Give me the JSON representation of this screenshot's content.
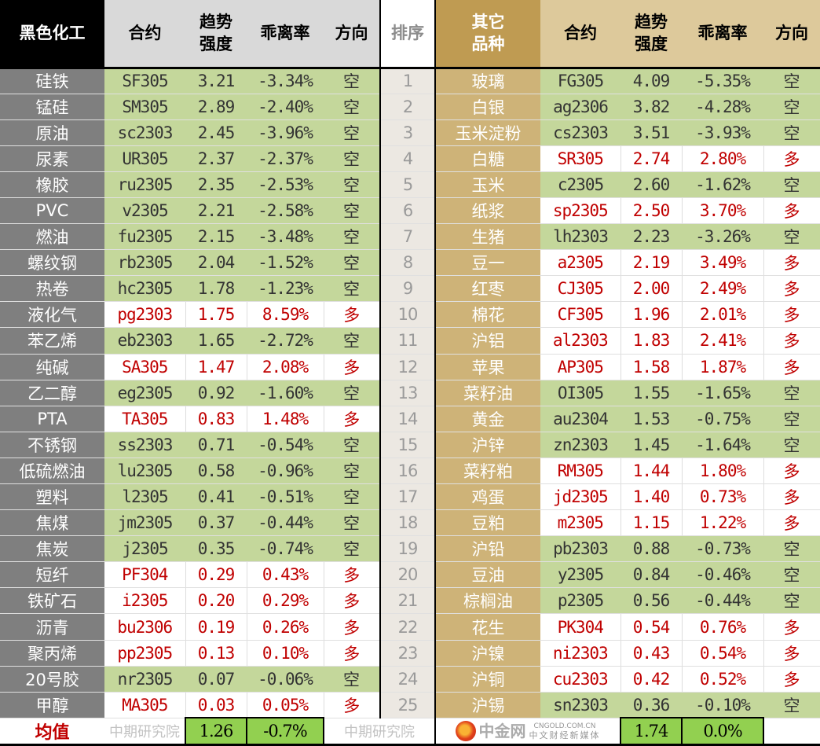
{
  "headers": {
    "left_category": "黑色化工",
    "contract": "合约",
    "strength_line1": "趋势",
    "strength_line2": "强度",
    "deviation": "乖离率",
    "direction": "方向",
    "rank": "排序",
    "right_category_line1": "其它",
    "right_category_line2": "品种"
  },
  "colors": {
    "short_row": "#c4d79b",
    "long_text": "#c00000",
    "left_category_bg": "#7f7f7f",
    "right_category_bg": "#ceb378",
    "average_bg": "#92d050"
  },
  "rows": [
    {
      "rank": "1",
      "left": {
        "name": "硅铁",
        "contract": "SF305",
        "strength": "3.21",
        "deviation": "-3.34%",
        "direction": "空"
      },
      "right": {
        "name": "玻璃",
        "contract": "FG305",
        "strength": "4.09",
        "deviation": "-5.35%",
        "direction": "空"
      }
    },
    {
      "rank": "2",
      "left": {
        "name": "锰硅",
        "contract": "SM305",
        "strength": "2.89",
        "deviation": "-2.40%",
        "direction": "空"
      },
      "right": {
        "name": "白银",
        "contract": "ag2306",
        "strength": "3.82",
        "deviation": "-4.28%",
        "direction": "空"
      }
    },
    {
      "rank": "3",
      "left": {
        "name": "原油",
        "contract": "sc2303",
        "strength": "2.45",
        "deviation": "-3.96%",
        "direction": "空"
      },
      "right": {
        "name": "玉米淀粉",
        "contract": "cs2303",
        "strength": "3.51",
        "deviation": "-3.93%",
        "direction": "空"
      }
    },
    {
      "rank": "4",
      "left": {
        "name": "尿素",
        "contract": "UR305",
        "strength": "2.37",
        "deviation": "-2.37%",
        "direction": "空"
      },
      "right": {
        "name": "白糖",
        "contract": "SR305",
        "strength": "2.74",
        "deviation": "2.80%",
        "direction": "多"
      }
    },
    {
      "rank": "5",
      "left": {
        "name": "橡胶",
        "contract": "ru2305",
        "strength": "2.35",
        "deviation": "-2.53%",
        "direction": "空"
      },
      "right": {
        "name": "玉米",
        "contract": "c2305",
        "strength": "2.60",
        "deviation": "-1.62%",
        "direction": "空"
      }
    },
    {
      "rank": "6",
      "left": {
        "name": "PVC",
        "contract": "v2305",
        "strength": "2.21",
        "deviation": "-2.58%",
        "direction": "空"
      },
      "right": {
        "name": "纸浆",
        "contract": "sp2305",
        "strength": "2.50",
        "deviation": "3.70%",
        "direction": "多"
      }
    },
    {
      "rank": "7",
      "left": {
        "name": "燃油",
        "contract": "fu2305",
        "strength": "2.15",
        "deviation": "-3.48%",
        "direction": "空"
      },
      "right": {
        "name": "生猪",
        "contract": "lh2303",
        "strength": "2.23",
        "deviation": "-3.26%",
        "direction": "空"
      }
    },
    {
      "rank": "8",
      "left": {
        "name": "螺纹钢",
        "contract": "rb2305",
        "strength": "2.04",
        "deviation": "-1.52%",
        "direction": "空"
      },
      "right": {
        "name": "豆一",
        "contract": "a2305",
        "strength": "2.19",
        "deviation": "3.49%",
        "direction": "多"
      }
    },
    {
      "rank": "9",
      "left": {
        "name": "热卷",
        "contract": "hc2305",
        "strength": "1.78",
        "deviation": "-1.23%",
        "direction": "空"
      },
      "right": {
        "name": "红枣",
        "contract": "CJ305",
        "strength": "2.00",
        "deviation": "2.49%",
        "direction": "多"
      }
    },
    {
      "rank": "10",
      "left": {
        "name": "液化气",
        "contract": "pg2303",
        "strength": "1.75",
        "deviation": "8.59%",
        "direction": "多"
      },
      "right": {
        "name": "棉花",
        "contract": "CF305",
        "strength": "1.96",
        "deviation": "2.01%",
        "direction": "多"
      }
    },
    {
      "rank": "11",
      "left": {
        "name": "苯乙烯",
        "contract": "eb2303",
        "strength": "1.65",
        "deviation": "-2.72%",
        "direction": "空"
      },
      "right": {
        "name": "沪铝",
        "contract": "al2303",
        "strength": "1.83",
        "deviation": "2.41%",
        "direction": "多"
      }
    },
    {
      "rank": "12",
      "left": {
        "name": "纯碱",
        "contract": "SA305",
        "strength": "1.47",
        "deviation": "2.08%",
        "direction": "多"
      },
      "right": {
        "name": "苹果",
        "contract": "AP305",
        "strength": "1.58",
        "deviation": "1.87%",
        "direction": "多"
      }
    },
    {
      "rank": "13",
      "left": {
        "name": "乙二醇",
        "contract": "eg2305",
        "strength": "0.92",
        "deviation": "-1.60%",
        "direction": "空"
      },
      "right": {
        "name": "菜籽油",
        "contract": "OI305",
        "strength": "1.55",
        "deviation": "-1.65%",
        "direction": "空"
      }
    },
    {
      "rank": "14",
      "left": {
        "name": "PTA",
        "contract": "TA305",
        "strength": "0.83",
        "deviation": "1.48%",
        "direction": "多"
      },
      "right": {
        "name": "黄金",
        "contract": "au2304",
        "strength": "1.53",
        "deviation": "-0.75%",
        "direction": "空"
      }
    },
    {
      "rank": "15",
      "left": {
        "name": "不锈钢",
        "contract": "ss2303",
        "strength": "0.71",
        "deviation": "-0.54%",
        "direction": "空"
      },
      "right": {
        "name": "沪锌",
        "contract": "zn2303",
        "strength": "1.45",
        "deviation": "-1.64%",
        "direction": "空"
      }
    },
    {
      "rank": "16",
      "left": {
        "name": "低硫燃油",
        "contract": "lu2305",
        "strength": "0.58",
        "deviation": "-0.96%",
        "direction": "空"
      },
      "right": {
        "name": "菜籽粕",
        "contract": "RM305",
        "strength": "1.44",
        "deviation": "1.80%",
        "direction": "多"
      }
    },
    {
      "rank": "17",
      "left": {
        "name": "塑料",
        "contract": "l2305",
        "strength": "0.41",
        "deviation": "-0.51%",
        "direction": "空"
      },
      "right": {
        "name": "鸡蛋",
        "contract": "jd2305",
        "strength": "1.40",
        "deviation": "0.73%",
        "direction": "多"
      }
    },
    {
      "rank": "18",
      "left": {
        "name": "焦煤",
        "contract": "jm2305",
        "strength": "0.37",
        "deviation": "-0.44%",
        "direction": "空"
      },
      "right": {
        "name": "豆粕",
        "contract": "m2305",
        "strength": "1.15",
        "deviation": "1.22%",
        "direction": "多"
      }
    },
    {
      "rank": "19",
      "left": {
        "name": "焦炭",
        "contract": "j2305",
        "strength": "0.35",
        "deviation": "-0.74%",
        "direction": "空"
      },
      "right": {
        "name": "沪铅",
        "contract": "pb2303",
        "strength": "0.88",
        "deviation": "-0.73%",
        "direction": "空"
      }
    },
    {
      "rank": "20",
      "left": {
        "name": "短纤",
        "contract": "PF304",
        "strength": "0.29",
        "deviation": "0.43%",
        "direction": "多"
      },
      "right": {
        "name": "豆油",
        "contract": "y2305",
        "strength": "0.84",
        "deviation": "-0.46%",
        "direction": "空"
      }
    },
    {
      "rank": "21",
      "left": {
        "name": "铁矿石",
        "contract": "i2305",
        "strength": "0.20",
        "deviation": "0.29%",
        "direction": "多"
      },
      "right": {
        "name": "棕榈油",
        "contract": "p2305",
        "strength": "0.56",
        "deviation": "-0.44%",
        "direction": "空"
      }
    },
    {
      "rank": "22",
      "left": {
        "name": "沥青",
        "contract": "bu2306",
        "strength": "0.19",
        "deviation": "0.26%",
        "direction": "多"
      },
      "right": {
        "name": "花生",
        "contract": "PK304",
        "strength": "0.54",
        "deviation": "0.76%",
        "direction": "多"
      }
    },
    {
      "rank": "23",
      "left": {
        "name": "聚丙烯",
        "contract": "pp2305",
        "strength": "0.13",
        "deviation": "0.10%",
        "direction": "多"
      },
      "right": {
        "name": "沪镍",
        "contract": "ni2303",
        "strength": "0.43",
        "deviation": "0.54%",
        "direction": "多"
      }
    },
    {
      "rank": "24",
      "left": {
        "name": "20号胶",
        "contract": "nr2305",
        "strength": "0.07",
        "deviation": "-0.06%",
        "direction": "空"
      },
      "right": {
        "name": "沪铜",
        "contract": "cu2303",
        "strength": "0.42",
        "deviation": "0.52%",
        "direction": "多"
      }
    },
    {
      "rank": "25",
      "left": {
        "name": "甲醇",
        "contract": "MA305",
        "strength": "0.03",
        "deviation": "0.05%",
        "direction": "多"
      },
      "right": {
        "name": "沪锡",
        "contract": "sn2303",
        "strength": "0.36",
        "deviation": "-0.10%",
        "direction": "空"
      }
    }
  ],
  "footer": {
    "label": "均值",
    "left_strength_avg": "1.26",
    "left_deviation_avg": "-0.7%",
    "right_strength_avg": "1.74",
    "right_deviation_avg": "0.0%"
  },
  "watermark": "中期研究院",
  "logo": {
    "name": "中金网",
    "url": "CNGOLD.COM.CN",
    "tagline": "中文财经新媒体"
  }
}
